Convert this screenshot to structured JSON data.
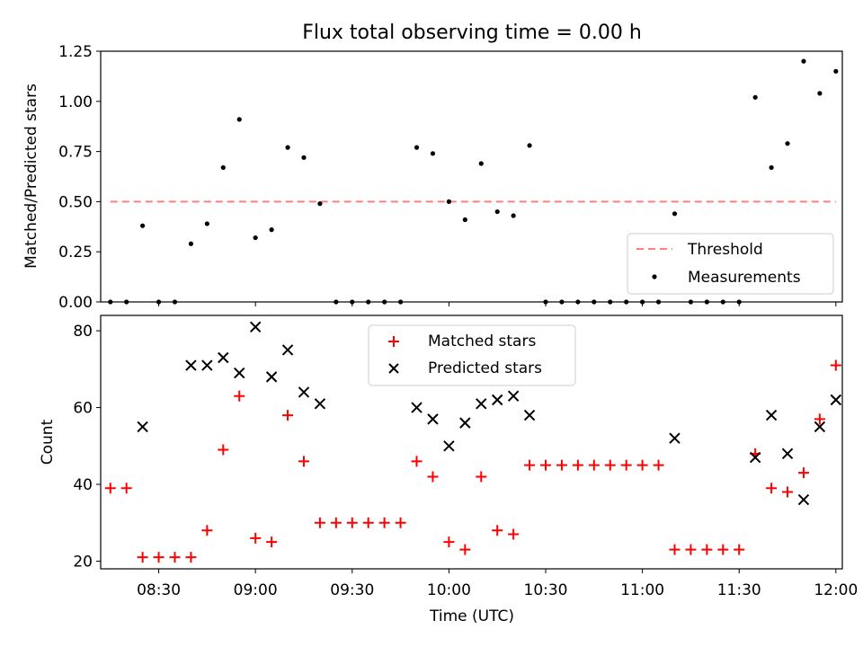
{
  "title": "Flux total observing time = 0.00 h",
  "colors": {
    "threshold": "#ff7f7f",
    "measurement": "#000000",
    "matched": "#ff0000",
    "predicted": "#000000"
  },
  "chart_data": [
    {
      "type": "scatter",
      "title": "Flux total observing time = 0.00 h",
      "xlabel": "",
      "ylabel": "Matched/Predicted stars",
      "xlim": [
        "08:12",
        "12:02"
      ],
      "ylim": [
        0,
        1.25
      ],
      "yticks": [
        "0.00",
        "0.25",
        "0.50",
        "0.75",
        "1.00",
        "1.25"
      ],
      "xticks": [
        "08:30",
        "09:00",
        "09:30",
        "10:00",
        "10:30",
        "11:00",
        "11:30",
        "12:00"
      ],
      "xtick_labels_visible": false,
      "legend": {
        "placement": "lower right",
        "entries": [
          "Threshold",
          "Measurements"
        ]
      },
      "threshold": {
        "name": "Threshold",
        "value": 0.5,
        "x_range": [
          "08:15",
          "12:00"
        ]
      },
      "series": [
        {
          "name": "Measurements",
          "points": [
            [
              "08:15",
              0.0
            ],
            [
              "08:20",
              0.0
            ],
            [
              "08:25",
              0.38
            ],
            [
              "08:30",
              0.0
            ],
            [
              "08:35",
              0.0
            ],
            [
              "08:40",
              0.29
            ],
            [
              "08:45",
              0.39
            ],
            [
              "08:50",
              0.67
            ],
            [
              "08:55",
              0.91
            ],
            [
              "09:00",
              0.32
            ],
            [
              "09:05",
              0.36
            ],
            [
              "09:10",
              0.77
            ],
            [
              "09:15",
              0.72
            ],
            [
              "09:20",
              0.49
            ],
            [
              "09:25",
              0.0
            ],
            [
              "09:30",
              0.0
            ],
            [
              "09:35",
              0.0
            ],
            [
              "09:40",
              0.0
            ],
            [
              "09:45",
              0.0
            ],
            [
              "09:50",
              0.77
            ],
            [
              "09:55",
              0.74
            ],
            [
              "10:00",
              0.5
            ],
            [
              "10:05",
              0.41
            ],
            [
              "10:10",
              0.69
            ],
            [
              "10:15",
              0.45
            ],
            [
              "10:20",
              0.43
            ],
            [
              "10:25",
              0.78
            ],
            [
              "10:30",
              0.0
            ],
            [
              "10:35",
              0.0
            ],
            [
              "10:40",
              0.0
            ],
            [
              "10:45",
              0.0
            ],
            [
              "10:50",
              0.0
            ],
            [
              "10:55",
              0.0
            ],
            [
              "11:00",
              0.0
            ],
            [
              "11:05",
              0.0
            ],
            [
              "11:10",
              0.44
            ],
            [
              "11:15",
              0.0
            ],
            [
              "11:20",
              0.0
            ],
            [
              "11:25",
              0.0
            ],
            [
              "11:30",
              0.0
            ],
            [
              "11:35",
              1.02
            ],
            [
              "11:40",
              0.67
            ],
            [
              "11:45",
              0.79
            ],
            [
              "11:50",
              1.2
            ],
            [
              "11:55",
              1.04
            ],
            [
              "12:00",
              1.15
            ]
          ]
        }
      ]
    },
    {
      "type": "scatter",
      "title": "",
      "xlabel": "Time (UTC)",
      "ylabel": "Count",
      "xlim": [
        "08:12",
        "12:02"
      ],
      "ylim": [
        18,
        84
      ],
      "yticks": [
        "20",
        "40",
        "60",
        "80"
      ],
      "xticks": [
        "08:30",
        "09:00",
        "09:30",
        "10:00",
        "10:30",
        "11:00",
        "11:30",
        "12:00"
      ],
      "legend": {
        "placement": "upper center",
        "entries": [
          "Matched stars",
          "Predicted stars"
        ]
      },
      "series": [
        {
          "name": "Matched stars",
          "marker": "plus",
          "points": [
            [
              "08:15",
              39
            ],
            [
              "08:20",
              39
            ],
            [
              "08:25",
              21
            ],
            [
              "08:30",
              21
            ],
            [
              "08:35",
              21
            ],
            [
              "08:40",
              21
            ],
            [
              "08:45",
              28
            ],
            [
              "08:50",
              49
            ],
            [
              "08:55",
              63
            ],
            [
              "09:00",
              26
            ],
            [
              "09:05",
              25
            ],
            [
              "09:10",
              58
            ],
            [
              "09:15",
              46
            ],
            [
              "09:20",
              30
            ],
            [
              "09:25",
              30
            ],
            [
              "09:30",
              30
            ],
            [
              "09:35",
              30
            ],
            [
              "09:40",
              30
            ],
            [
              "09:45",
              30
            ],
            [
              "09:50",
              46
            ],
            [
              "09:55",
              42
            ],
            [
              "10:00",
              25
            ],
            [
              "10:05",
              23
            ],
            [
              "10:10",
              42
            ],
            [
              "10:15",
              28
            ],
            [
              "10:20",
              27
            ],
            [
              "10:25",
              45
            ],
            [
              "10:30",
              45
            ],
            [
              "10:35",
              45
            ],
            [
              "10:40",
              45
            ],
            [
              "10:45",
              45
            ],
            [
              "10:50",
              45
            ],
            [
              "10:55",
              45
            ],
            [
              "11:00",
              45
            ],
            [
              "11:05",
              45
            ],
            [
              "11:10",
              23
            ],
            [
              "11:15",
              23
            ],
            [
              "11:20",
              23
            ],
            [
              "11:25",
              23
            ],
            [
              "11:30",
              23
            ],
            [
              "11:35",
              48
            ],
            [
              "11:40",
              39
            ],
            [
              "11:45",
              38
            ],
            [
              "11:50",
              43
            ],
            [
              "11:55",
              57
            ],
            [
              "12:00",
              71
            ]
          ]
        },
        {
          "name": "Predicted stars",
          "marker": "x",
          "points": [
            [
              "08:25",
              55
            ],
            [
              "08:40",
              71
            ],
            [
              "08:45",
              71
            ],
            [
              "08:50",
              73
            ],
            [
              "08:55",
              69
            ],
            [
              "09:00",
              81
            ],
            [
              "09:05",
              68
            ],
            [
              "09:10",
              75
            ],
            [
              "09:15",
              64
            ],
            [
              "09:20",
              61
            ],
            [
              "09:50",
              60
            ],
            [
              "09:55",
              57
            ],
            [
              "10:00",
              50
            ],
            [
              "10:05",
              56
            ],
            [
              "10:10",
              61
            ],
            [
              "10:15",
              62
            ],
            [
              "10:20",
              63
            ],
            [
              "10:25",
              58
            ],
            [
              "11:10",
              52
            ],
            [
              "11:35",
              47
            ],
            [
              "11:40",
              58
            ],
            [
              "11:45",
              48
            ],
            [
              "11:50",
              36
            ],
            [
              "11:55",
              55
            ],
            [
              "12:00",
              62
            ]
          ]
        }
      ]
    }
  ]
}
